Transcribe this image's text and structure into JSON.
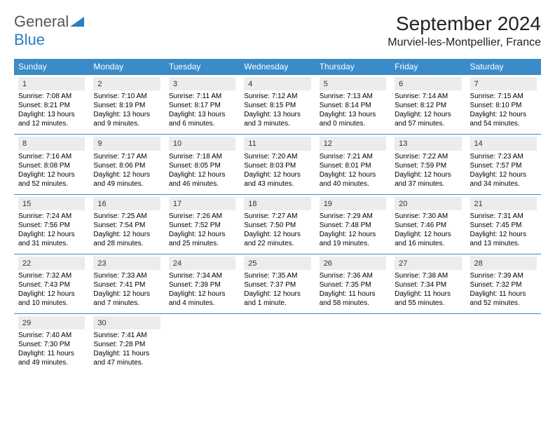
{
  "logo": {
    "text1": "General",
    "text2": "Blue"
  },
  "title": "September 2024",
  "location": "Murviel-les-Montpellier, France",
  "colors": {
    "header_bg": "#3b8bc8",
    "header_text": "#ffffff",
    "daynum_bg": "#ececec",
    "border": "#3b8bc8",
    "logo_blue": "#2a7fbf"
  },
  "typography": {
    "title_fontsize": 28,
    "location_fontsize": 16,
    "header_fontsize": 12,
    "cell_fontsize": 10
  },
  "weekdays": [
    "Sunday",
    "Monday",
    "Tuesday",
    "Wednesday",
    "Thursday",
    "Friday",
    "Saturday"
  ],
  "weeks": [
    [
      {
        "day": "1",
        "sunrise": "Sunrise: 7:08 AM",
        "sunset": "Sunset: 8:21 PM",
        "daylight1": "Daylight: 13 hours",
        "daylight2": "and 12 minutes."
      },
      {
        "day": "2",
        "sunrise": "Sunrise: 7:10 AM",
        "sunset": "Sunset: 8:19 PM",
        "daylight1": "Daylight: 13 hours",
        "daylight2": "and 9 minutes."
      },
      {
        "day": "3",
        "sunrise": "Sunrise: 7:11 AM",
        "sunset": "Sunset: 8:17 PM",
        "daylight1": "Daylight: 13 hours",
        "daylight2": "and 6 minutes."
      },
      {
        "day": "4",
        "sunrise": "Sunrise: 7:12 AM",
        "sunset": "Sunset: 8:15 PM",
        "daylight1": "Daylight: 13 hours",
        "daylight2": "and 3 minutes."
      },
      {
        "day": "5",
        "sunrise": "Sunrise: 7:13 AM",
        "sunset": "Sunset: 8:14 PM",
        "daylight1": "Daylight: 13 hours",
        "daylight2": "and 0 minutes."
      },
      {
        "day": "6",
        "sunrise": "Sunrise: 7:14 AM",
        "sunset": "Sunset: 8:12 PM",
        "daylight1": "Daylight: 12 hours",
        "daylight2": "and 57 minutes."
      },
      {
        "day": "7",
        "sunrise": "Sunrise: 7:15 AM",
        "sunset": "Sunset: 8:10 PM",
        "daylight1": "Daylight: 12 hours",
        "daylight2": "and 54 minutes."
      }
    ],
    [
      {
        "day": "8",
        "sunrise": "Sunrise: 7:16 AM",
        "sunset": "Sunset: 8:08 PM",
        "daylight1": "Daylight: 12 hours",
        "daylight2": "and 52 minutes."
      },
      {
        "day": "9",
        "sunrise": "Sunrise: 7:17 AM",
        "sunset": "Sunset: 8:06 PM",
        "daylight1": "Daylight: 12 hours",
        "daylight2": "and 49 minutes."
      },
      {
        "day": "10",
        "sunrise": "Sunrise: 7:18 AM",
        "sunset": "Sunset: 8:05 PM",
        "daylight1": "Daylight: 12 hours",
        "daylight2": "and 46 minutes."
      },
      {
        "day": "11",
        "sunrise": "Sunrise: 7:20 AM",
        "sunset": "Sunset: 8:03 PM",
        "daylight1": "Daylight: 12 hours",
        "daylight2": "and 43 minutes."
      },
      {
        "day": "12",
        "sunrise": "Sunrise: 7:21 AM",
        "sunset": "Sunset: 8:01 PM",
        "daylight1": "Daylight: 12 hours",
        "daylight2": "and 40 minutes."
      },
      {
        "day": "13",
        "sunrise": "Sunrise: 7:22 AM",
        "sunset": "Sunset: 7:59 PM",
        "daylight1": "Daylight: 12 hours",
        "daylight2": "and 37 minutes."
      },
      {
        "day": "14",
        "sunrise": "Sunrise: 7:23 AM",
        "sunset": "Sunset: 7:57 PM",
        "daylight1": "Daylight: 12 hours",
        "daylight2": "and 34 minutes."
      }
    ],
    [
      {
        "day": "15",
        "sunrise": "Sunrise: 7:24 AM",
        "sunset": "Sunset: 7:56 PM",
        "daylight1": "Daylight: 12 hours",
        "daylight2": "and 31 minutes."
      },
      {
        "day": "16",
        "sunrise": "Sunrise: 7:25 AM",
        "sunset": "Sunset: 7:54 PM",
        "daylight1": "Daylight: 12 hours",
        "daylight2": "and 28 minutes."
      },
      {
        "day": "17",
        "sunrise": "Sunrise: 7:26 AM",
        "sunset": "Sunset: 7:52 PM",
        "daylight1": "Daylight: 12 hours",
        "daylight2": "and 25 minutes."
      },
      {
        "day": "18",
        "sunrise": "Sunrise: 7:27 AM",
        "sunset": "Sunset: 7:50 PM",
        "daylight1": "Daylight: 12 hours",
        "daylight2": "and 22 minutes."
      },
      {
        "day": "19",
        "sunrise": "Sunrise: 7:29 AM",
        "sunset": "Sunset: 7:48 PM",
        "daylight1": "Daylight: 12 hours",
        "daylight2": "and 19 minutes."
      },
      {
        "day": "20",
        "sunrise": "Sunrise: 7:30 AM",
        "sunset": "Sunset: 7:46 PM",
        "daylight1": "Daylight: 12 hours",
        "daylight2": "and 16 minutes."
      },
      {
        "day": "21",
        "sunrise": "Sunrise: 7:31 AM",
        "sunset": "Sunset: 7:45 PM",
        "daylight1": "Daylight: 12 hours",
        "daylight2": "and 13 minutes."
      }
    ],
    [
      {
        "day": "22",
        "sunrise": "Sunrise: 7:32 AM",
        "sunset": "Sunset: 7:43 PM",
        "daylight1": "Daylight: 12 hours",
        "daylight2": "and 10 minutes."
      },
      {
        "day": "23",
        "sunrise": "Sunrise: 7:33 AM",
        "sunset": "Sunset: 7:41 PM",
        "daylight1": "Daylight: 12 hours",
        "daylight2": "and 7 minutes."
      },
      {
        "day": "24",
        "sunrise": "Sunrise: 7:34 AM",
        "sunset": "Sunset: 7:39 PM",
        "daylight1": "Daylight: 12 hours",
        "daylight2": "and 4 minutes."
      },
      {
        "day": "25",
        "sunrise": "Sunrise: 7:35 AM",
        "sunset": "Sunset: 7:37 PM",
        "daylight1": "Daylight: 12 hours",
        "daylight2": "and 1 minute."
      },
      {
        "day": "26",
        "sunrise": "Sunrise: 7:36 AM",
        "sunset": "Sunset: 7:35 PM",
        "daylight1": "Daylight: 11 hours",
        "daylight2": "and 58 minutes."
      },
      {
        "day": "27",
        "sunrise": "Sunrise: 7:38 AM",
        "sunset": "Sunset: 7:34 PM",
        "daylight1": "Daylight: 11 hours",
        "daylight2": "and 55 minutes."
      },
      {
        "day": "28",
        "sunrise": "Sunrise: 7:39 AM",
        "sunset": "Sunset: 7:32 PM",
        "daylight1": "Daylight: 11 hours",
        "daylight2": "and 52 minutes."
      }
    ],
    [
      {
        "day": "29",
        "sunrise": "Sunrise: 7:40 AM",
        "sunset": "Sunset: 7:30 PM",
        "daylight1": "Daylight: 11 hours",
        "daylight2": "and 49 minutes."
      },
      {
        "day": "30",
        "sunrise": "Sunrise: 7:41 AM",
        "sunset": "Sunset: 7:28 PM",
        "daylight1": "Daylight: 11 hours",
        "daylight2": "and 47 minutes."
      },
      null,
      null,
      null,
      null,
      null
    ]
  ]
}
